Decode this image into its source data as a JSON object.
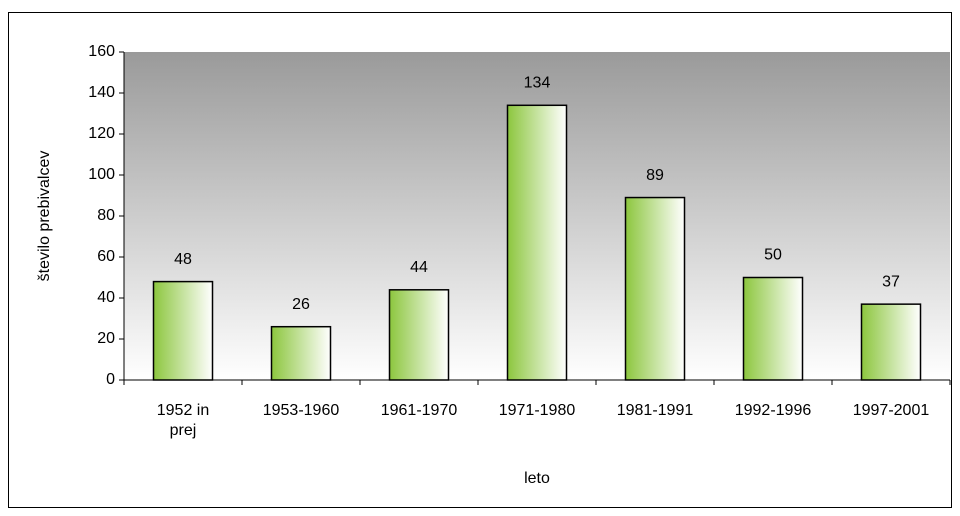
{
  "chart_data": {
    "type": "bar",
    "x_label": "leto",
    "y_label": "število prebivalcev",
    "categories": [
      "1952 in prej",
      "1953-1960",
      "1961-1970",
      "1971-1980",
      "1981-1991",
      "1992-1996",
      "1997-2001"
    ],
    "values": [
      48,
      26,
      44,
      134,
      89,
      50,
      37
    ],
    "color": "#8cc63e",
    "ylim": [
      0,
      160
    ],
    "yticks": [
      0,
      20,
      40,
      60,
      80,
      100,
      120,
      140,
      160
    ],
    "grid": false
  }
}
